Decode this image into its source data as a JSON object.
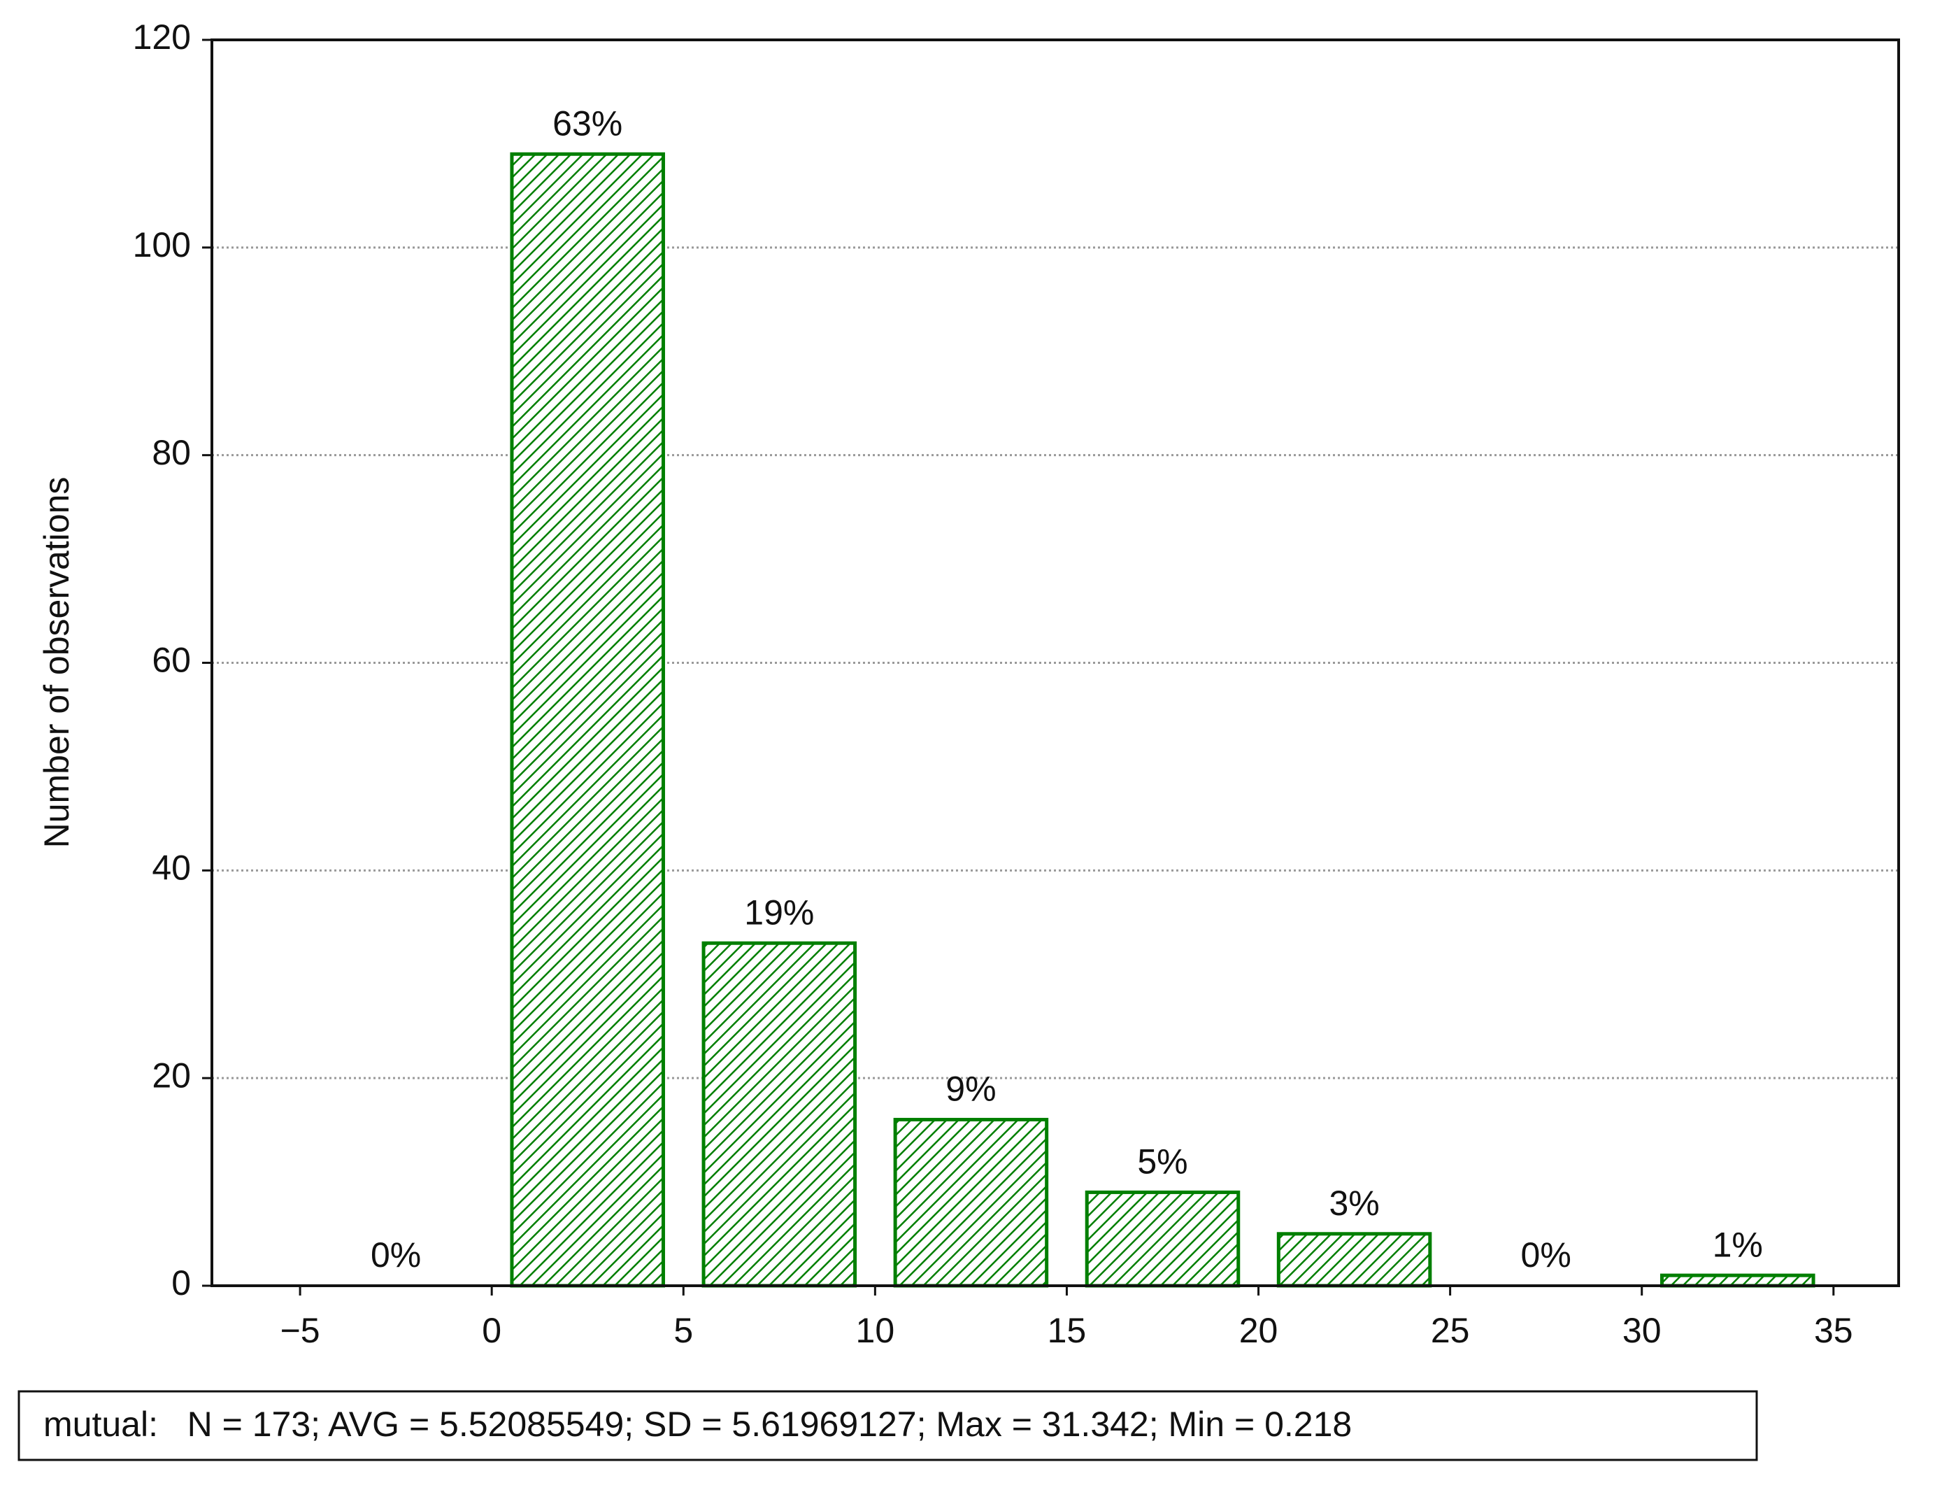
{
  "chart_data": {
    "type": "histogram",
    "y_label": "Number of observations",
    "bins": [
      -5,
      0,
      5,
      10,
      15,
      20,
      25,
      30,
      35
    ],
    "values": [
      0,
      109,
      33,
      16,
      9,
      5,
      0,
      1
    ],
    "value_labels": [
      "0%",
      "63%",
      "19%",
      "9%",
      "5%",
      "3%",
      "0%",
      "1%"
    ],
    "color": "#007f00",
    "xlim": [
      -7.3,
      36.7
    ],
    "xticks": [
      {
        "value": -5,
        "label": "−5"
      },
      0,
      5,
      10,
      15,
      20,
      25,
      30,
      35
    ],
    "ylim": [
      0,
      120
    ],
    "yticks": [
      0,
      20,
      40,
      60,
      80,
      100,
      120
    ],
    "grid": true,
    "stats": "mutual:   N = 173; AVG = 5.52085549; SD = 5.61969127; Max = 31.342; Min = 0.218"
  }
}
